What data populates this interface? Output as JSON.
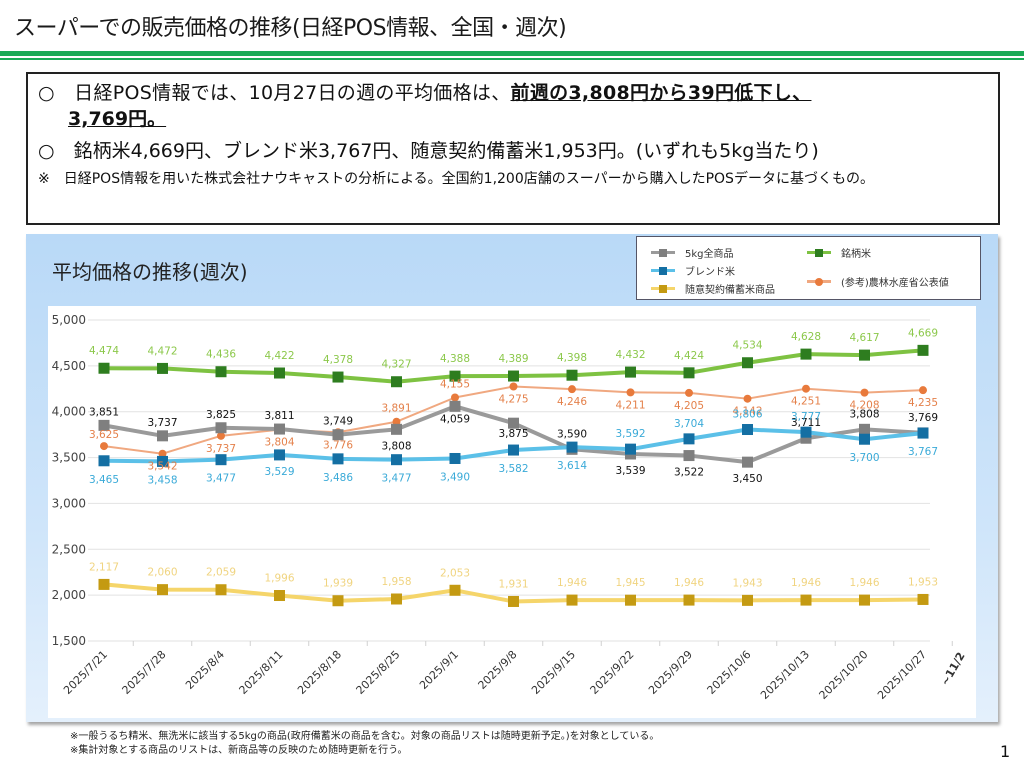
{
  "header": {
    "title": "スーパーでの販売価格の推移(日経POS情報、全国・週次)"
  },
  "summary": {
    "line1_prefix": "○　日経POS情報では、10月27日の週の平均価格は、",
    "line1_emphasis": "前週の3,808円から39円低下し、",
    "line1_continuation": "3,769円。",
    "line2": "○　銘柄米4,669円、ブレンド米3,767円、随意契約備蓄米1,953円。(いずれも5kg当たり)",
    "note": "※　日経POS情報を用いた株式会社ナウキャストの分析による。全国約1,200店舗のスーパーから購入したPOSデータに基づくもの。"
  },
  "chart_panel": {
    "title": "平均価格の推移(週次)"
  },
  "legend": {
    "items": [
      {
        "label": "5kg全商品",
        "series": 0
      },
      {
        "label": "銘柄米",
        "series": 1
      },
      {
        "label": "ブレンド米",
        "series": 2
      },
      {
        "label": "(参考)農林水産省公表値",
        "series": 4
      },
      {
        "label": "随意契約備蓄米商品",
        "series": 3
      }
    ]
  },
  "chart_data": {
    "type": "line",
    "title": "平均価格の推移(週次)",
    "xlabel": "",
    "ylabel": "",
    "ylim": [
      1500,
      5000
    ],
    "yticks": [
      1500,
      2000,
      2500,
      3000,
      3500,
      4000,
      4500,
      5000
    ],
    "ytick_labels": [
      "1,500",
      "2,000",
      "2,500",
      "3,000",
      "3,500",
      "4,000",
      "4,500",
      "5,000"
    ],
    "grid": true,
    "legend_position": "top-right",
    "categories": [
      "2025/7/21",
      "2025/7/28",
      "2025/8/4",
      "2025/8/11",
      "2025/8/18",
      "2025/8/25",
      "2025/9/1",
      "2025/9/8",
      "2025/9/15",
      "2025/9/22",
      "2025/9/29",
      "2025/10/6",
      "2025/10/13",
      "2025/10/20",
      "2025/10/27"
    ],
    "extra_category_label": "~11/2",
    "series": [
      {
        "name": "5kg全商品",
        "line_color": "#9a9a9a",
        "marker_color": "#7f7f7f",
        "label_color": "#111111",
        "marker": "square",
        "values": [
          3851,
          3737,
          3825,
          3811,
          3749,
          3808,
          4059,
          3875,
          3590,
          3539,
          3522,
          3450,
          3711,
          3808,
          3769
        ],
        "labels": [
          "3,851",
          "3,737",
          "3,825",
          "3,811",
          "3,749",
          "3,808",
          "4,059",
          "3,875",
          "3,590",
          "3,539",
          "3,522",
          "3,450",
          "3,711",
          "3,808",
          "3,769"
        ]
      },
      {
        "name": "銘柄米",
        "line_color": "#7ec242",
        "marker_color": "#2e7d1f",
        "label_color": "#8cc84b",
        "marker": "square",
        "values": [
          4474,
          4472,
          4436,
          4422,
          4378,
          4327,
          4388,
          4389,
          4398,
          4432,
          4424,
          4534,
          4628,
          4617,
          4669
        ],
        "labels": [
          "4,474",
          "4,472",
          "4,436",
          "4,422",
          "4,378",
          "4,327",
          "4,388",
          "4,389",
          "4,398",
          "4,432",
          "4,424",
          "4,534",
          "4,628",
          "4,617",
          "4,669"
        ]
      },
      {
        "name": "ブレンド米",
        "line_color": "#5bc0e8",
        "marker_color": "#146fa3",
        "label_color": "#3aaad8",
        "marker": "square",
        "values": [
          3465,
          3458,
          3477,
          3529,
          3486,
          3477,
          3490,
          3582,
          3614,
          3592,
          3704,
          3806,
          3777,
          3700,
          3767
        ],
        "labels": [
          "3,465",
          "3,458",
          "3,477",
          "3,529",
          "3,486",
          "3,477",
          "3,490",
          "3,582",
          "3,614",
          "3,592",
          "3,704",
          "3,806",
          "3,777",
          "3,700",
          "3,767"
        ]
      },
      {
        "name": "随意契約備蓄米商品",
        "line_color": "#f5d56a",
        "marker_color": "#c49a12",
        "label_color": "#f0d480",
        "marker": "square",
        "values": [
          2117,
          2060,
          2059,
          1996,
          1939,
          1958,
          2053,
          1931,
          1946,
          1945,
          1946,
          1943,
          1946,
          1946,
          1953
        ],
        "labels": [
          "2,117",
          "2,060",
          "2,059",
          "1,996",
          "1,939",
          "1,958",
          "2,053",
          "1,931",
          "1,946",
          "1,945",
          "1,946",
          "1,943",
          "1,946",
          "1,946",
          "1,953"
        ]
      },
      {
        "name": "(参考)農林水産省公表値",
        "line_color": "#f0a880",
        "marker_color": "#e87a3c",
        "label_color": "#e4804a",
        "marker": "circle",
        "values": [
          3625,
          3542,
          3737,
          3804,
          3776,
          3891,
          4155,
          4275,
          4246,
          4211,
          4205,
          4142,
          4251,
          4208,
          4235
        ],
        "labels": [
          "3,625",
          "3,542",
          "3,737",
          "3,804",
          "3,776",
          "3,891",
          "4,155",
          "4,275",
          "4,246",
          "4,211",
          "4,205",
          "4,142",
          "4,251",
          "4,208",
          "4,235"
        ]
      }
    ]
  },
  "footnotes": [
    "※一般うるち精米、無洗米に該当する5kgの商品(政府備蓄米の商品を含む。対象の商品リストは随時更新予定。)を対象としている。",
    "※集計対象とする商品のリストは、新商品等の反映のため随時更新を行う。"
  ],
  "page_number": "1"
}
